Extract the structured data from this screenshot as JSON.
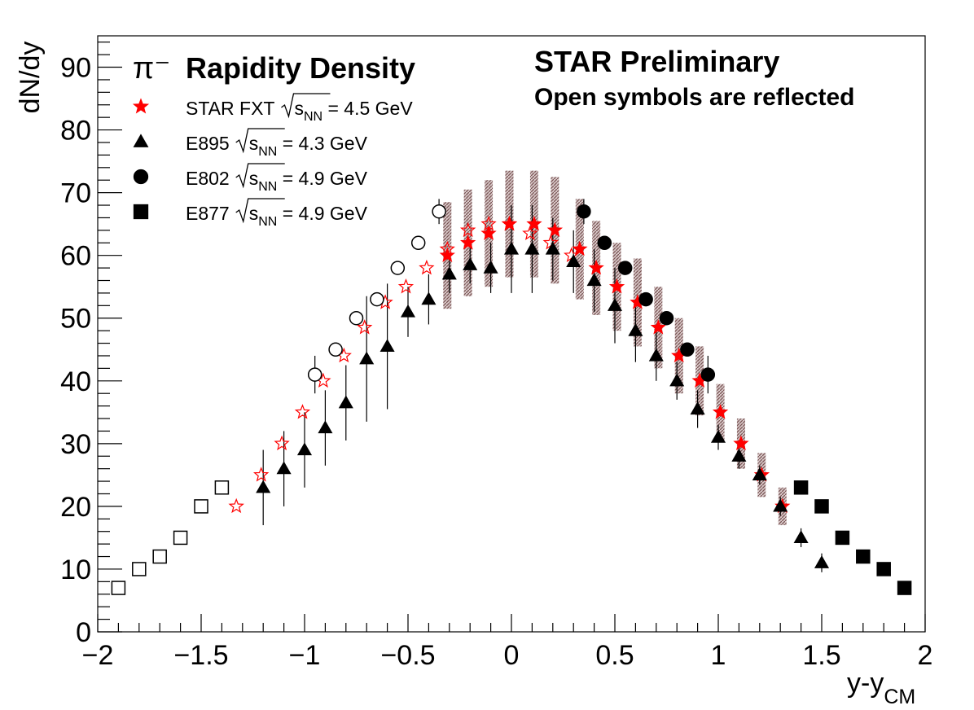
{
  "chart_data": {
    "type": "scatter",
    "title": "Rapidity Density",
    "particle": "π⁻",
    "xlabel": "y-y",
    "xlabel_sub": "CM",
    "ylabel": "dN/dy",
    "xlim": [
      -2,
      2
    ],
    "ylim": [
      0,
      95
    ],
    "x_ticks": [
      -2,
      -1.5,
      -1,
      -0.5,
      0,
      0.5,
      1,
      1.5,
      2
    ],
    "x_tick_labels": [
      "−2",
      "−1.5",
      "−1",
      "−0.5",
      "0",
      "0.5",
      "1",
      "1.5",
      "2"
    ],
    "y_ticks": [
      0,
      10,
      20,
      30,
      40,
      50,
      60,
      70,
      80,
      90
    ],
    "y_tick_labels": [
      "0",
      "10",
      "20",
      "30",
      "40",
      "50",
      "60",
      "70",
      "80",
      "90"
    ],
    "grid": false,
    "legend_position": "top-left",
    "annotations": {
      "headline": "STAR Preliminary",
      "note": "Open symbols are reflected"
    },
    "colors": {
      "star_fxt": "#ff0000",
      "others": "#000000",
      "sys_band": "#8c6d6d"
    },
    "series": [
      {
        "key": "star_fxt",
        "name": "STAR FXT",
        "energy_prefix": "s",
        "energy_sub": "NN",
        "energy_value": " = 4.5 GeV",
        "marker": "star",
        "color": "#ff0000",
        "x": [
          -0.31,
          -0.21,
          -0.11,
          -0.01,
          0.11,
          0.21,
          0.33,
          0.41,
          0.51,
          0.61,
          0.71,
          0.81,
          0.91,
          1.01,
          1.11,
          1.21,
          1.31
        ],
        "y": [
          60,
          62,
          63.5,
          65,
          65,
          64,
          61,
          58,
          55,
          52.5,
          48.5,
          44,
          40,
          35,
          30,
          25,
          20
        ],
        "sys": [
          8.5,
          8.5,
          8.5,
          8.5,
          8.5,
          8.5,
          8,
          7.5,
          7,
          7,
          6.5,
          6,
          5.5,
          4.5,
          4,
          3.5,
          3
        ],
        "reflected_x": [
          -1.33,
          -1.21,
          -1.11,
          -1.01,
          -0.91,
          -0.81,
          -0.71,
          -0.61,
          -0.51,
          -0.41,
          -0.31,
          -0.21,
          -0.11,
          -0.01,
          0.09,
          0.19,
          0.29
        ],
        "reflected_y": [
          20,
          25,
          30,
          35,
          40,
          44,
          48.5,
          52.5,
          55,
          58,
          61,
          64,
          65,
          65,
          63.5,
          62,
          60
        ]
      },
      {
        "key": "e895",
        "name": "E895",
        "energy_prefix": "s",
        "energy_sub": "NN",
        "energy_value": " = 4.3 GeV",
        "marker": "triangle",
        "color": "#000000",
        "x": [
          -1.2,
          -1.1,
          -1.0,
          -0.9,
          -0.8,
          -0.7,
          -0.6,
          -0.5,
          -0.4,
          -0.3,
          -0.2,
          -0.1,
          0.0,
          0.1,
          0.2,
          0.3,
          0.4,
          0.5,
          0.6,
          0.7,
          0.8,
          0.9,
          1.0,
          1.1,
          1.2,
          1.3,
          1.4,
          1.5
        ],
        "y": [
          23,
          26,
          29,
          32.5,
          36.5,
          43.5,
          45.5,
          51,
          53,
          57,
          58.5,
          58,
          61,
          61,
          61,
          59,
          56,
          52,
          48,
          44,
          40,
          35.5,
          31,
          28,
          25,
          20,
          15,
          11
        ],
        "err": [
          6,
          6,
          6,
          6,
          6,
          10,
          10,
          4,
          4,
          3,
          3,
          4,
          7,
          7,
          5,
          5,
          5,
          6,
          5,
          4,
          3,
          3,
          2,
          2,
          1.5,
          1.5,
          1.5,
          1.5
        ]
      },
      {
        "key": "e802",
        "name": "E802",
        "energy_prefix": "s",
        "energy_sub": "NN",
        "energy_value": " = 4.9 GeV",
        "marker": "circle",
        "color": "#000000",
        "x": [
          0.35,
          0.45,
          0.55,
          0.65,
          0.75,
          0.85,
          0.95
        ],
        "y": [
          67,
          62,
          58,
          53,
          50,
          45,
          41
        ],
        "err": [
          2,
          1,
          1,
          1,
          1,
          1,
          3
        ],
        "reflected_x": [
          -0.95,
          -0.85,
          -0.75,
          -0.65,
          -0.55,
          -0.45,
          -0.35
        ],
        "reflected_y": [
          41,
          45,
          50,
          53,
          58,
          62,
          67
        ]
      },
      {
        "key": "e877",
        "name": "E877",
        "energy_prefix": "s",
        "energy_sub": "NN",
        "energy_value": " = 4.9 GeV",
        "marker": "square",
        "color": "#000000",
        "x": [
          1.4,
          1.5,
          1.6,
          1.7,
          1.8,
          1.9
        ],
        "y": [
          23,
          20,
          15,
          12,
          10,
          7
        ],
        "reflected_x": [
          -1.9,
          -1.8,
          -1.7,
          -1.6,
          -1.5,
          -1.4
        ],
        "reflected_y": [
          7,
          10,
          12,
          15,
          20,
          23
        ]
      }
    ]
  }
}
